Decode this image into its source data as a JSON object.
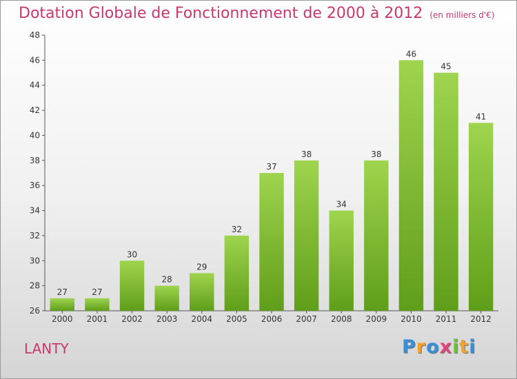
{
  "header": {
    "title": "Dotation Globale de Fonctionnement de 2000 à 2012",
    "unit": "(en milliers d'€)"
  },
  "commune": "LANTY",
  "brand": {
    "letters": [
      "P",
      "r",
      "o",
      "x",
      "i",
      "t",
      "i"
    ],
    "colors": [
      "#3a8fd8",
      "#f2a12b",
      "#3a8fd8",
      "#e0457b",
      "#6fbf3a",
      "#f2a12b",
      "#3a8fd8"
    ]
  },
  "chart_data": {
    "type": "bar",
    "title": "Dotation Globale de Fonctionnement de 2000 à 2012",
    "subtitle": "(en milliers d'€)",
    "categories": [
      "2000",
      "2001",
      "2002",
      "2003",
      "2004",
      "2005",
      "2006",
      "2007",
      "2008",
      "2009",
      "2010",
      "2011",
      "2012"
    ],
    "values": [
      27,
      27,
      30,
      28,
      29,
      32,
      37,
      38,
      34,
      38,
      46,
      45,
      41
    ],
    "ylim": [
      26,
      48
    ],
    "yticks": [
      26,
      28,
      30,
      32,
      34,
      36,
      38,
      40,
      42,
      44,
      46,
      48
    ],
    "bar_color": "#7ab82e",
    "grid": false,
    "legend": false,
    "data_labels": true
  }
}
